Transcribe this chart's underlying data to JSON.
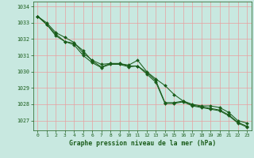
{
  "xlabel": "Graphe pression niveau de la mer (hPa)",
  "xlim": [
    -0.5,
    23.5
  ],
  "ylim": [
    1026.4,
    1034.3
  ],
  "yticks": [
    1027,
    1028,
    1029,
    1030,
    1031,
    1032,
    1033,
    1034
  ],
  "xticks": [
    0,
    1,
    2,
    3,
    4,
    5,
    6,
    7,
    8,
    9,
    10,
    11,
    12,
    13,
    14,
    15,
    16,
    17,
    18,
    19,
    20,
    21,
    22,
    23
  ],
  "background_color": "#c8e8e0",
  "grid_color": "#e8a0a0",
  "line_color": "#1a5c1a",
  "line1": [
    1033.4,
    1033.0,
    1032.4,
    1032.1,
    1031.8,
    1031.15,
    1030.7,
    1030.45,
    1030.5,
    1030.5,
    1030.4,
    1030.7,
    1030.0,
    1029.55,
    1029.15,
    1028.6,
    1028.2,
    1028.0,
    1027.9,
    1027.9,
    1027.8,
    1027.5,
    1027.0,
    1026.85
  ],
  "line2": [
    1033.4,
    1032.9,
    1032.3,
    1031.85,
    1031.75,
    1031.3,
    1030.65,
    1030.3,
    1030.5,
    1030.5,
    1030.35,
    1030.35,
    1029.95,
    1029.45,
    1028.1,
    1028.1,
    1028.2,
    1027.95,
    1027.85,
    1027.75,
    1027.65,
    1027.35,
    1026.9,
    1026.65
  ],
  "line3": [
    1033.4,
    1032.9,
    1032.2,
    1031.85,
    1031.65,
    1031.0,
    1030.55,
    1030.25,
    1030.45,
    1030.45,
    1030.3,
    1030.35,
    1029.85,
    1029.35,
    1028.05,
    1028.05,
    1028.15,
    1027.9,
    1027.8,
    1027.7,
    1027.6,
    1027.3,
    1026.85,
    1026.6
  ]
}
